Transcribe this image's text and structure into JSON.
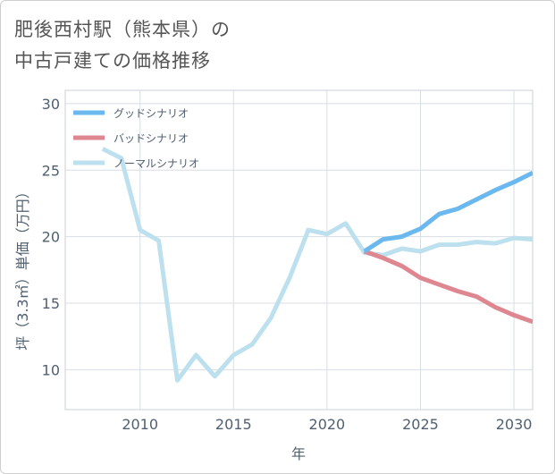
{
  "title": {
    "line1": "肥後西村駅（熊本県）の",
    "line2": "中古戸建ての価格推移"
  },
  "chart_data": {
    "type": "line",
    "xlabel": "年",
    "ylabel": "坪（3.3㎡）単価（万円）",
    "xlim": [
      2006,
      2031
    ],
    "ylim": [
      7,
      31
    ],
    "xticks": [
      2010,
      2015,
      2020,
      2025,
      2030
    ],
    "yticks": [
      10,
      15,
      20,
      25,
      30
    ],
    "grid": true,
    "legend_position": "top-left",
    "series": [
      {
        "name": "グッドシナリオ",
        "color": "#6ab8ee",
        "x": [
          2022,
          2023,
          2024,
          2025,
          2026,
          2027,
          2028,
          2029,
          2030,
          2031
        ],
        "y": [
          18.9,
          19.8,
          20.0,
          20.6,
          21.7,
          22.1,
          22.8,
          23.5,
          24.1,
          24.8
        ]
      },
      {
        "name": "バッドシナリオ",
        "color": "#de8790",
        "x": [
          2022,
          2023,
          2024,
          2025,
          2026,
          2027,
          2028,
          2029,
          2030,
          2031
        ],
        "y": [
          18.9,
          18.4,
          17.8,
          16.9,
          16.4,
          15.9,
          15.5,
          14.7,
          14.1,
          13.6
        ]
      },
      {
        "name": "ノーマルシナリオ",
        "color": "#bde0ee",
        "x": [
          2008,
          2009,
          2010,
          2011,
          2012,
          2013,
          2014,
          2015,
          2016,
          2017,
          2018,
          2019,
          2020,
          2021,
          2022,
          2023,
          2024,
          2025,
          2026,
          2027,
          2028,
          2029,
          2030,
          2031
        ],
        "y": [
          26.6,
          25.9,
          20.5,
          19.7,
          9.2,
          11.1,
          9.5,
          11.1,
          11.9,
          13.9,
          16.9,
          20.5,
          20.2,
          21.0,
          18.8,
          18.6,
          19.1,
          18.9,
          19.4,
          19.4,
          19.6,
          19.5,
          19.9,
          19.8
        ]
      }
    ]
  }
}
